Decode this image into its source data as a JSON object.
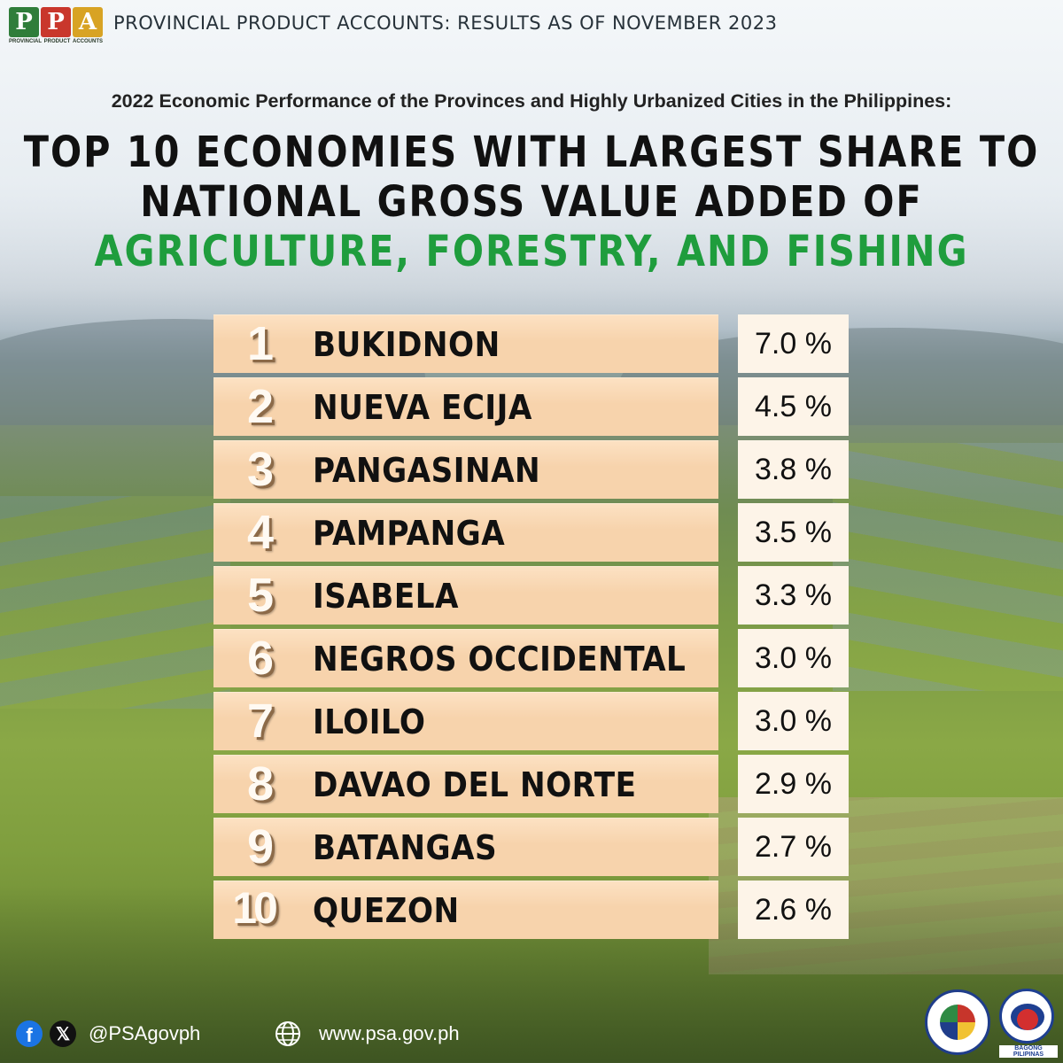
{
  "header": {
    "logo": {
      "letters": [
        "P",
        "P",
        "A"
      ],
      "words": [
        "PROVINCIAL",
        "PRODUCT",
        "ACCOUNTS"
      ]
    },
    "title": "PROVINCIAL PRODUCT ACCOUNTS: RESULTS AS OF NOVEMBER 2023"
  },
  "subtitle": "2022 Economic Performance of the Provinces and Highly Urbanized Cities in the Philippines:",
  "headline": {
    "line1": "TOP 10 ECONOMIES WITH LARGEST SHARE TO",
    "line2": "NATIONAL GROSS VALUE ADDED OF",
    "line3": "AGRICULTURE, FORESTRY, AND FISHING"
  },
  "rankings": [
    {
      "rank": "1",
      "name": "BUKIDNON",
      "share": "7.0 %"
    },
    {
      "rank": "2",
      "name": "NUEVA ECIJA",
      "share": "4.5 %"
    },
    {
      "rank": "3",
      "name": "PANGASINAN",
      "share": "3.8 %"
    },
    {
      "rank": "4",
      "name": "PAMPANGA",
      "share": "3.5 %"
    },
    {
      "rank": "5",
      "name": "ISABELA",
      "share": "3.3 %"
    },
    {
      "rank": "6",
      "name": "NEGROS OCCIDENTAL",
      "share": "3.0 %"
    },
    {
      "rank": "7",
      "name": "ILOILO",
      "share": "3.0 %"
    },
    {
      "rank": "8",
      "name": "DAVAO DEL NORTE",
      "share": "2.9 %"
    },
    {
      "rank": "9",
      "name": "BATANGAS",
      "share": "2.7 %"
    },
    {
      "rank": "10",
      "name": "QUEZON",
      "share": "2.6 %"
    }
  ],
  "footer": {
    "facebook_icon": "facebook-icon",
    "x_icon": "x-icon",
    "handle": "@PSAgovph",
    "globe_icon": "globe-icon",
    "website": "www.psa.gov.ph",
    "bagong_text": "BAGONG PILIPINAS"
  },
  "colors": {
    "headline_green": "#1f9d3d",
    "rank_row_bg": "#f7d3ac",
    "share_cell_bg": "#fdf4e8",
    "logo_green": "#2f7d3a",
    "logo_red": "#c9372c",
    "logo_gold": "#d8a324"
  }
}
